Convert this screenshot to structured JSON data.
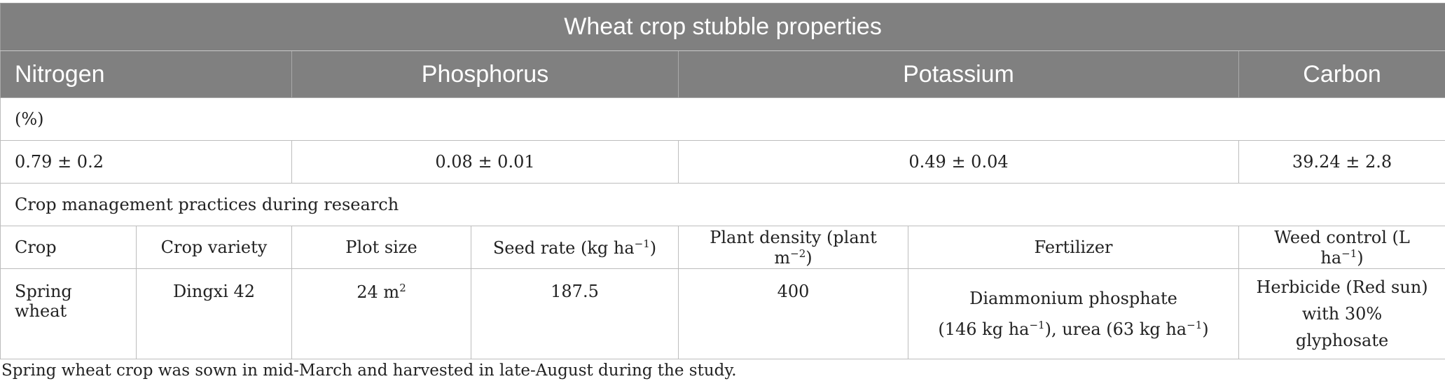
{
  "title": "Wheat crop stubble properties",
  "headers": {
    "nitrogen": "Nitrogen",
    "phosphorus": "Phosphorus",
    "potassium": "Potassium",
    "carbon": "Carbon"
  },
  "unit_row": "(%)",
  "values": {
    "nitrogen": "0.79 ± 0.2",
    "phosphorus": "0.08 ± 0.01",
    "potassium": "0.49 ± 0.04",
    "carbon": "39.24 ± 2.8"
  },
  "section_title": "Crop management practices during research",
  "mgmt_headers": {
    "crop": "Crop",
    "variety": "Crop variety",
    "plot_size": "Plot size",
    "seed_rate": "Seed rate (kg ha",
    "seed_rate_sup": "−1",
    "seed_rate_end": ")",
    "plant_density": "Plant density (plant m",
    "plant_density_sup": "−2",
    "plant_density_end": ")",
    "fertilizer": "Fertilizer",
    "weed_control": "Weed control (L ha",
    "weed_control_sup": "−1",
    "weed_control_end": ")"
  },
  "mgmt_values": {
    "crop": "Spring wheat",
    "variety": "Dingxi 42",
    "plot_size": "24 m",
    "plot_size_sup": "2",
    "seed_rate": "187.5",
    "plant_density": "400",
    "fertilizer_line1": "Diammonium phosphate",
    "fertilizer_line2a": "(146 kg ha",
    "fertilizer_line2a_sup": "−1",
    "fertilizer_line2b": "), urea (63 kg ha",
    "fertilizer_line2b_sup": "−1",
    "fertilizer_line2c": ")",
    "weed_line1": "Herbicide (Red sun)",
    "weed_line2": "with 30% glyphosate"
  },
  "footnote": "Spring wheat crop was sown in mid-March and harvested in late-August during the study."
}
